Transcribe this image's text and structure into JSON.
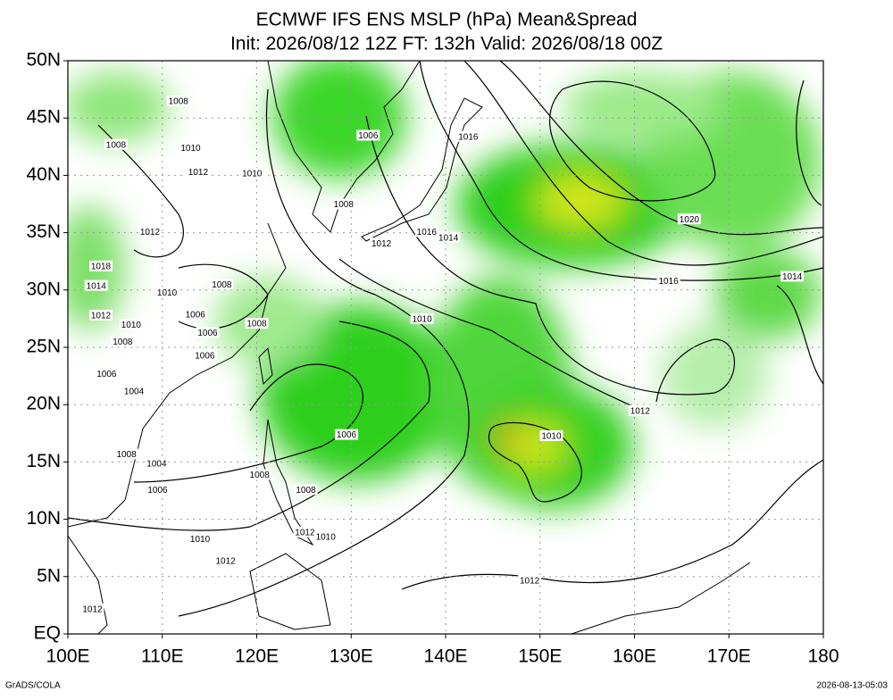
{
  "title": [
    "ECMWF IFS ENS MSLP (hPa) Mean&Spread",
    "Init: 2026/08/12 12Z  FT: 132h  Valid: 2026/08/18 00Z"
  ],
  "map": {
    "xlim": [
      100,
      180
    ],
    "ylim": [
      0,
      50
    ],
    "xticks": [
      {
        "value": 100,
        "label": "100E"
      },
      {
        "value": 110,
        "label": "110E"
      },
      {
        "value": 120,
        "label": "120E"
      },
      {
        "value": 130,
        "label": "130E"
      },
      {
        "value": 140,
        "label": "140E"
      },
      {
        "value": 150,
        "label": "150E"
      },
      {
        "value": 160,
        "label": "160E"
      },
      {
        "value": 170,
        "label": "170E"
      },
      180
    ],
    "yticks": [
      {
        "value": 0,
        "label": "EQ"
      },
      {
        "value": 5,
        "label": "5N"
      },
      {
        "value": 10,
        "label": "10N"
      },
      {
        "value": 15,
        "label": "15N"
      },
      {
        "value": 20,
        "label": "20N"
      },
      {
        "value": 25,
        "label": "25N"
      },
      {
        "value": 30,
        "label": "30N"
      },
      {
        "value": 35,
        "label": "35N"
      },
      {
        "value": 40,
        "label": "40N"
      },
      {
        "value": 45,
        "label": "45N"
      },
      {
        "value": 50,
        "label": "50N"
      }
    ],
    "contour_labels": [
      {
        "label": "1008",
        "lon": 111.7,
        "lat": 46.5
      },
      {
        "label": "1008",
        "lon": 105.1,
        "lat": 42.7
      },
      {
        "label": "1010",
        "lon": 113.0,
        "lat": 42.4
      },
      {
        "label": "1012",
        "lon": 113.8,
        "lat": 40.3
      },
      {
        "label": "1010",
        "lon": 119.5,
        "lat": 40.2
      },
      {
        "label": "1006",
        "lon": 131.8,
        "lat": 43.5
      },
      {
        "label": "1016",
        "lon": 142.4,
        "lat": 43.4
      },
      {
        "label": "1008",
        "lon": 129.2,
        "lat": 37.5
      },
      {
        "label": "1012",
        "lon": 108.7,
        "lat": 35.1
      },
      {
        "label": "1012",
        "lon": 133.2,
        "lat": 34.1
      },
      {
        "label": "1016",
        "lon": 138.0,
        "lat": 35.1
      },
      {
        "label": "1014",
        "lon": 140.3,
        "lat": 34.6
      },
      {
        "label": "1020",
        "lon": 165.8,
        "lat": 36.2
      },
      {
        "label": "1016",
        "lon": 163.6,
        "lat": 30.8
      },
      {
        "label": "1014",
        "lon": 176.7,
        "lat": 31.2
      },
      {
        "label": "1018",
        "lon": 103.5,
        "lat": 32.1
      },
      {
        "label": "1014",
        "lon": 103.0,
        "lat": 30.4
      },
      {
        "label": "1010",
        "lon": 110.5,
        "lat": 29.8
      },
      {
        "label": "1008",
        "lon": 116.3,
        "lat": 30.5
      },
      {
        "label": "1012",
        "lon": 103.5,
        "lat": 27.8
      },
      {
        "label": "1010",
        "lon": 106.7,
        "lat": 27.0
      },
      {
        "label": "1006",
        "lon": 113.5,
        "lat": 27.9
      },
      {
        "label": "1008",
        "lon": 120.0,
        "lat": 27.1
      },
      {
        "label": "1006",
        "lon": 114.8,
        "lat": 26.3
      },
      {
        "label": "1008",
        "lon": 105.8,
        "lat": 25.5
      },
      {
        "label": "1010",
        "lon": 137.5,
        "lat": 27.5
      },
      {
        "label": "1006",
        "lon": 114.5,
        "lat": 24.3
      },
      {
        "label": "1006",
        "lon": 104.1,
        "lat": 22.7
      },
      {
        "label": "1004",
        "lon": 107.0,
        "lat": 21.2
      },
      {
        "label": "1012",
        "lon": 160.6,
        "lat": 19.5
      },
      {
        "label": "1010",
        "lon": 151.2,
        "lat": 17.3
      },
      {
        "label": "1006",
        "lon": 129.5,
        "lat": 17.4
      },
      {
        "label": "1008",
        "lon": 106.2,
        "lat": 15.7
      },
      {
        "label": "1004",
        "lon": 109.4,
        "lat": 14.9
      },
      {
        "label": "1006",
        "lon": 109.5,
        "lat": 12.6
      },
      {
        "label": "1008",
        "lon": 120.3,
        "lat": 13.9
      },
      {
        "label": "1008",
        "lon": 125.2,
        "lat": 12.6
      },
      {
        "label": "1010",
        "lon": 114.0,
        "lat": 8.3
      },
      {
        "label": "1012",
        "lon": 125.1,
        "lat": 8.9
      },
      {
        "label": "1010",
        "lon": 127.3,
        "lat": 8.5
      },
      {
        "label": "1012",
        "lon": 116.7,
        "lat": 6.4
      },
      {
        "label": "1012",
        "lon": 148.9,
        "lat": 4.7
      },
      {
        "label": "1012",
        "lon": 102.6,
        "lat": 2.2
      }
    ]
  },
  "footer": {
    "left": "GrADS/COLA",
    "right": "2026-08-13-05:03"
  }
}
